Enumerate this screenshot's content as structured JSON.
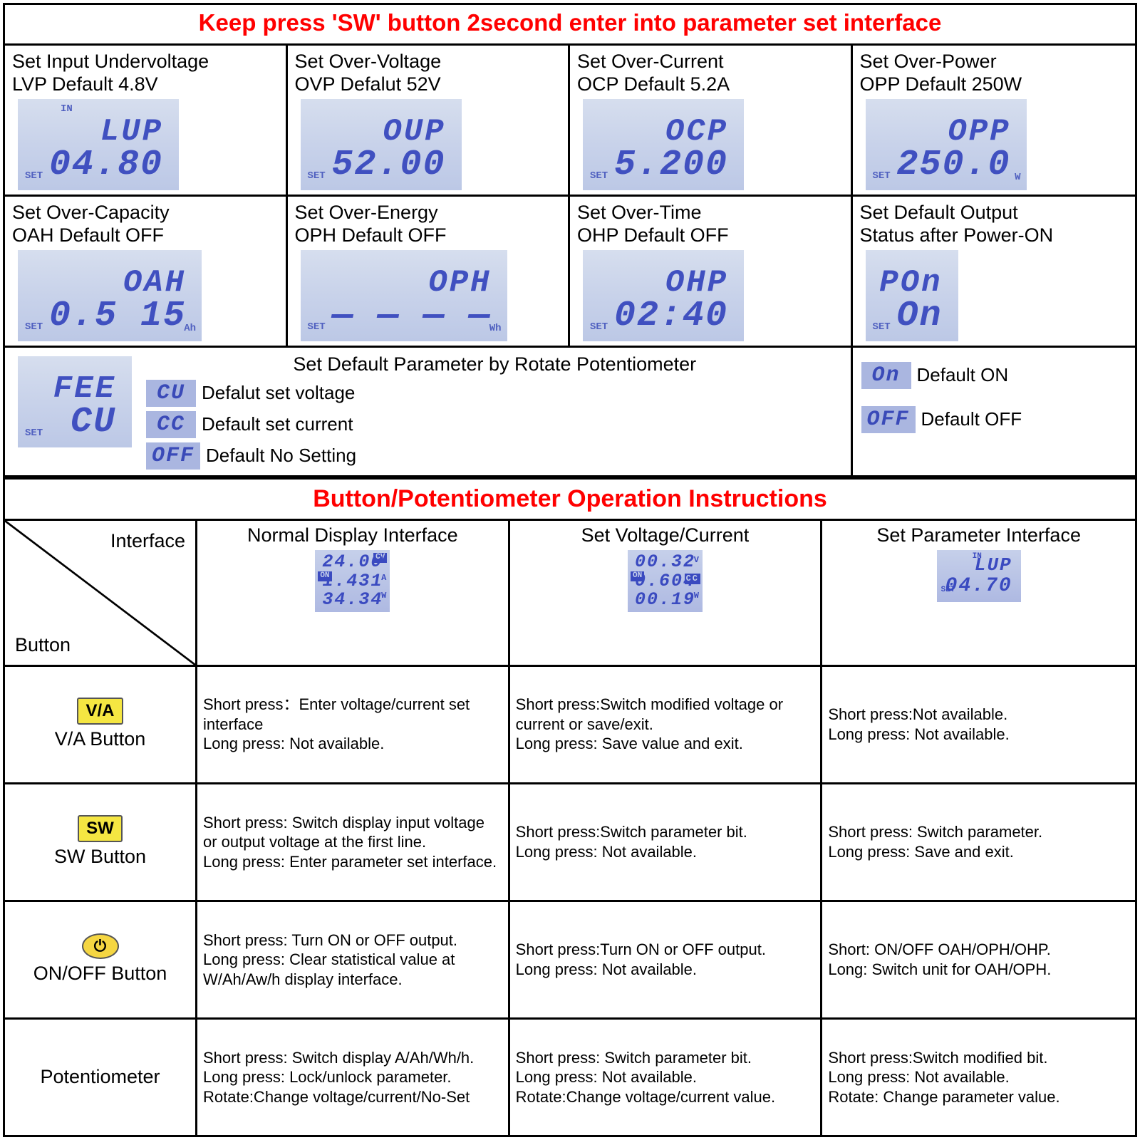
{
  "title1": "Keep press 'SW' button 2second enter into parameter set interface",
  "title1_color": "#ff0000",
  "title2": "Button/Potentiometer Operation Instructions",
  "title2_color": "#ff0000",
  "params": [
    {
      "t1": "Set Input Undervoltage",
      "t2": "LVP Default 4.8V",
      "l1": "LUP",
      "l2": "04.80",
      "in": "IN",
      "set": "SET",
      "unit": ""
    },
    {
      "t1": "Set Over-Voltage",
      "t2": "OVP Defalut 52V",
      "l1": "OUP",
      "l2": "52.00",
      "in": "",
      "set": "SET",
      "unit": ""
    },
    {
      "t1": "Set Over-Current",
      "t2": "OCP Default 5.2A",
      "l1": "OCP",
      "l2": "5.200",
      "in": "",
      "set": "SET",
      "unit": ""
    },
    {
      "t1": "Set Over-Power",
      "t2": "OPP Default 250W",
      "l1": "OPP",
      "l2": "250.0",
      "in": "",
      "set": "SET",
      "unit": "W"
    },
    {
      "t1": "Set Over-Capacity",
      "t2": "OAH Default OFF",
      "l1": "OAH",
      "l2": "0.5 15",
      "in": "",
      "set": "SET",
      "unit": "Ah"
    },
    {
      "t1": "Set Over-Energy",
      "t2": "OPH Default OFF",
      "l1": "OPH",
      "l2": "— — — —",
      "in": "",
      "set": "SET",
      "unit": "Wh"
    },
    {
      "t1": "Set Over-Time",
      "t2": "OHP Default OFF",
      "l1": "OHP",
      "l2": "02:40",
      "in": "",
      "set": "SET",
      "unit": ""
    },
    {
      "t1": "Set Default Output",
      "t2": "Status after Power-ON",
      "l1": "POn",
      "l2": "On",
      "in": "",
      "set": "SET",
      "unit": ""
    }
  ],
  "row3": {
    "title": "Set Default Parameter by Rotate Potentiometer",
    "lcd_l1": "FEE",
    "lcd_l2": "CU",
    "set": "SET",
    "legend": [
      {
        "code": "CU",
        "label": "Defalut set voltage"
      },
      {
        "code": "CC",
        "label": "Default set current"
      },
      {
        "code": "OFF",
        "label": "Default No Setting"
      }
    ]
  },
  "onoff_legend": [
    {
      "code": "On",
      "label": "Default ON"
    },
    {
      "code": "OFF",
      "label": "Default OFF"
    }
  ],
  "op_headers": {
    "corner_if": "Interface",
    "corner_bt": "Button",
    "col1": "Normal Display Interface",
    "col2": "Set Voltage/Current",
    "col3": "Set Parameter Interface"
  },
  "lcd_col1": {
    "l1": "24.00",
    "l2": "1.431",
    "l3": "34.34",
    "u1": "V",
    "u2": "A",
    "u3": "W",
    "on": "ON",
    "cv": "CV"
  },
  "lcd_col2": {
    "l1": "00.32",
    "l2": "0.604",
    "l3": "00.19",
    "u1": "V",
    "u2": "CC",
    "u3": "W",
    "on": "ON"
  },
  "lcd_col3": {
    "in": "IN",
    "l1": "LUP",
    "l2": "04.70",
    "set": "SET"
  },
  "rows": [
    {
      "btn_badge": "V/A",
      "btn_name": "V/A Button",
      "badge_class": "btn-rect",
      "c1": "Short press：Enter voltage/current set interface\nLong press: Not available.",
      "c2": "Short press:Switch modified voltage or current or save/exit.\nLong press: Save value and exit.",
      "c3": "Short press:Not available.\nLong press: Not available."
    },
    {
      "btn_badge": "SW",
      "btn_name": "SW Button",
      "badge_class": "btn-rect",
      "c1": "Short press: Switch display input voltage or output voltage at the first line.\nLong press: Enter parameter set interface.",
      "c2": "Short press:Switch parameter bit.\nLong press: Not available.",
      "c3": "Short press: Switch parameter.\nLong press: Save and exit."
    },
    {
      "btn_badge": "⏻",
      "btn_name": "ON/OFF Button",
      "badge_class": "btn-oval",
      "c1": "Short press: Turn ON or OFF output.\nLong press: Clear statistical value at W/Ah/Aw/h display interface.",
      "c2": "Short press:Turn ON or OFF output.\nLong press: Not available.",
      "c3": "Short: ON/OFF OAH/OPH/OHP.\nLong: Switch unit for OAH/OPH."
    },
    {
      "btn_badge": "",
      "btn_name": "Potentiometer",
      "badge_class": "",
      "c1": "Short press: Switch display A/Ah/Wh/h.\nLong press: Lock/unlock parameter.\nRotate:Change voltage/current/No-Set",
      "c2": "Short press: Switch parameter bit.\nLong press: Not available.\nRotate:Change voltage/current  value.",
      "c3": "Short press:Switch modified bit.\nLong press: Not available.\nRotate: Change parameter value."
    }
  ]
}
